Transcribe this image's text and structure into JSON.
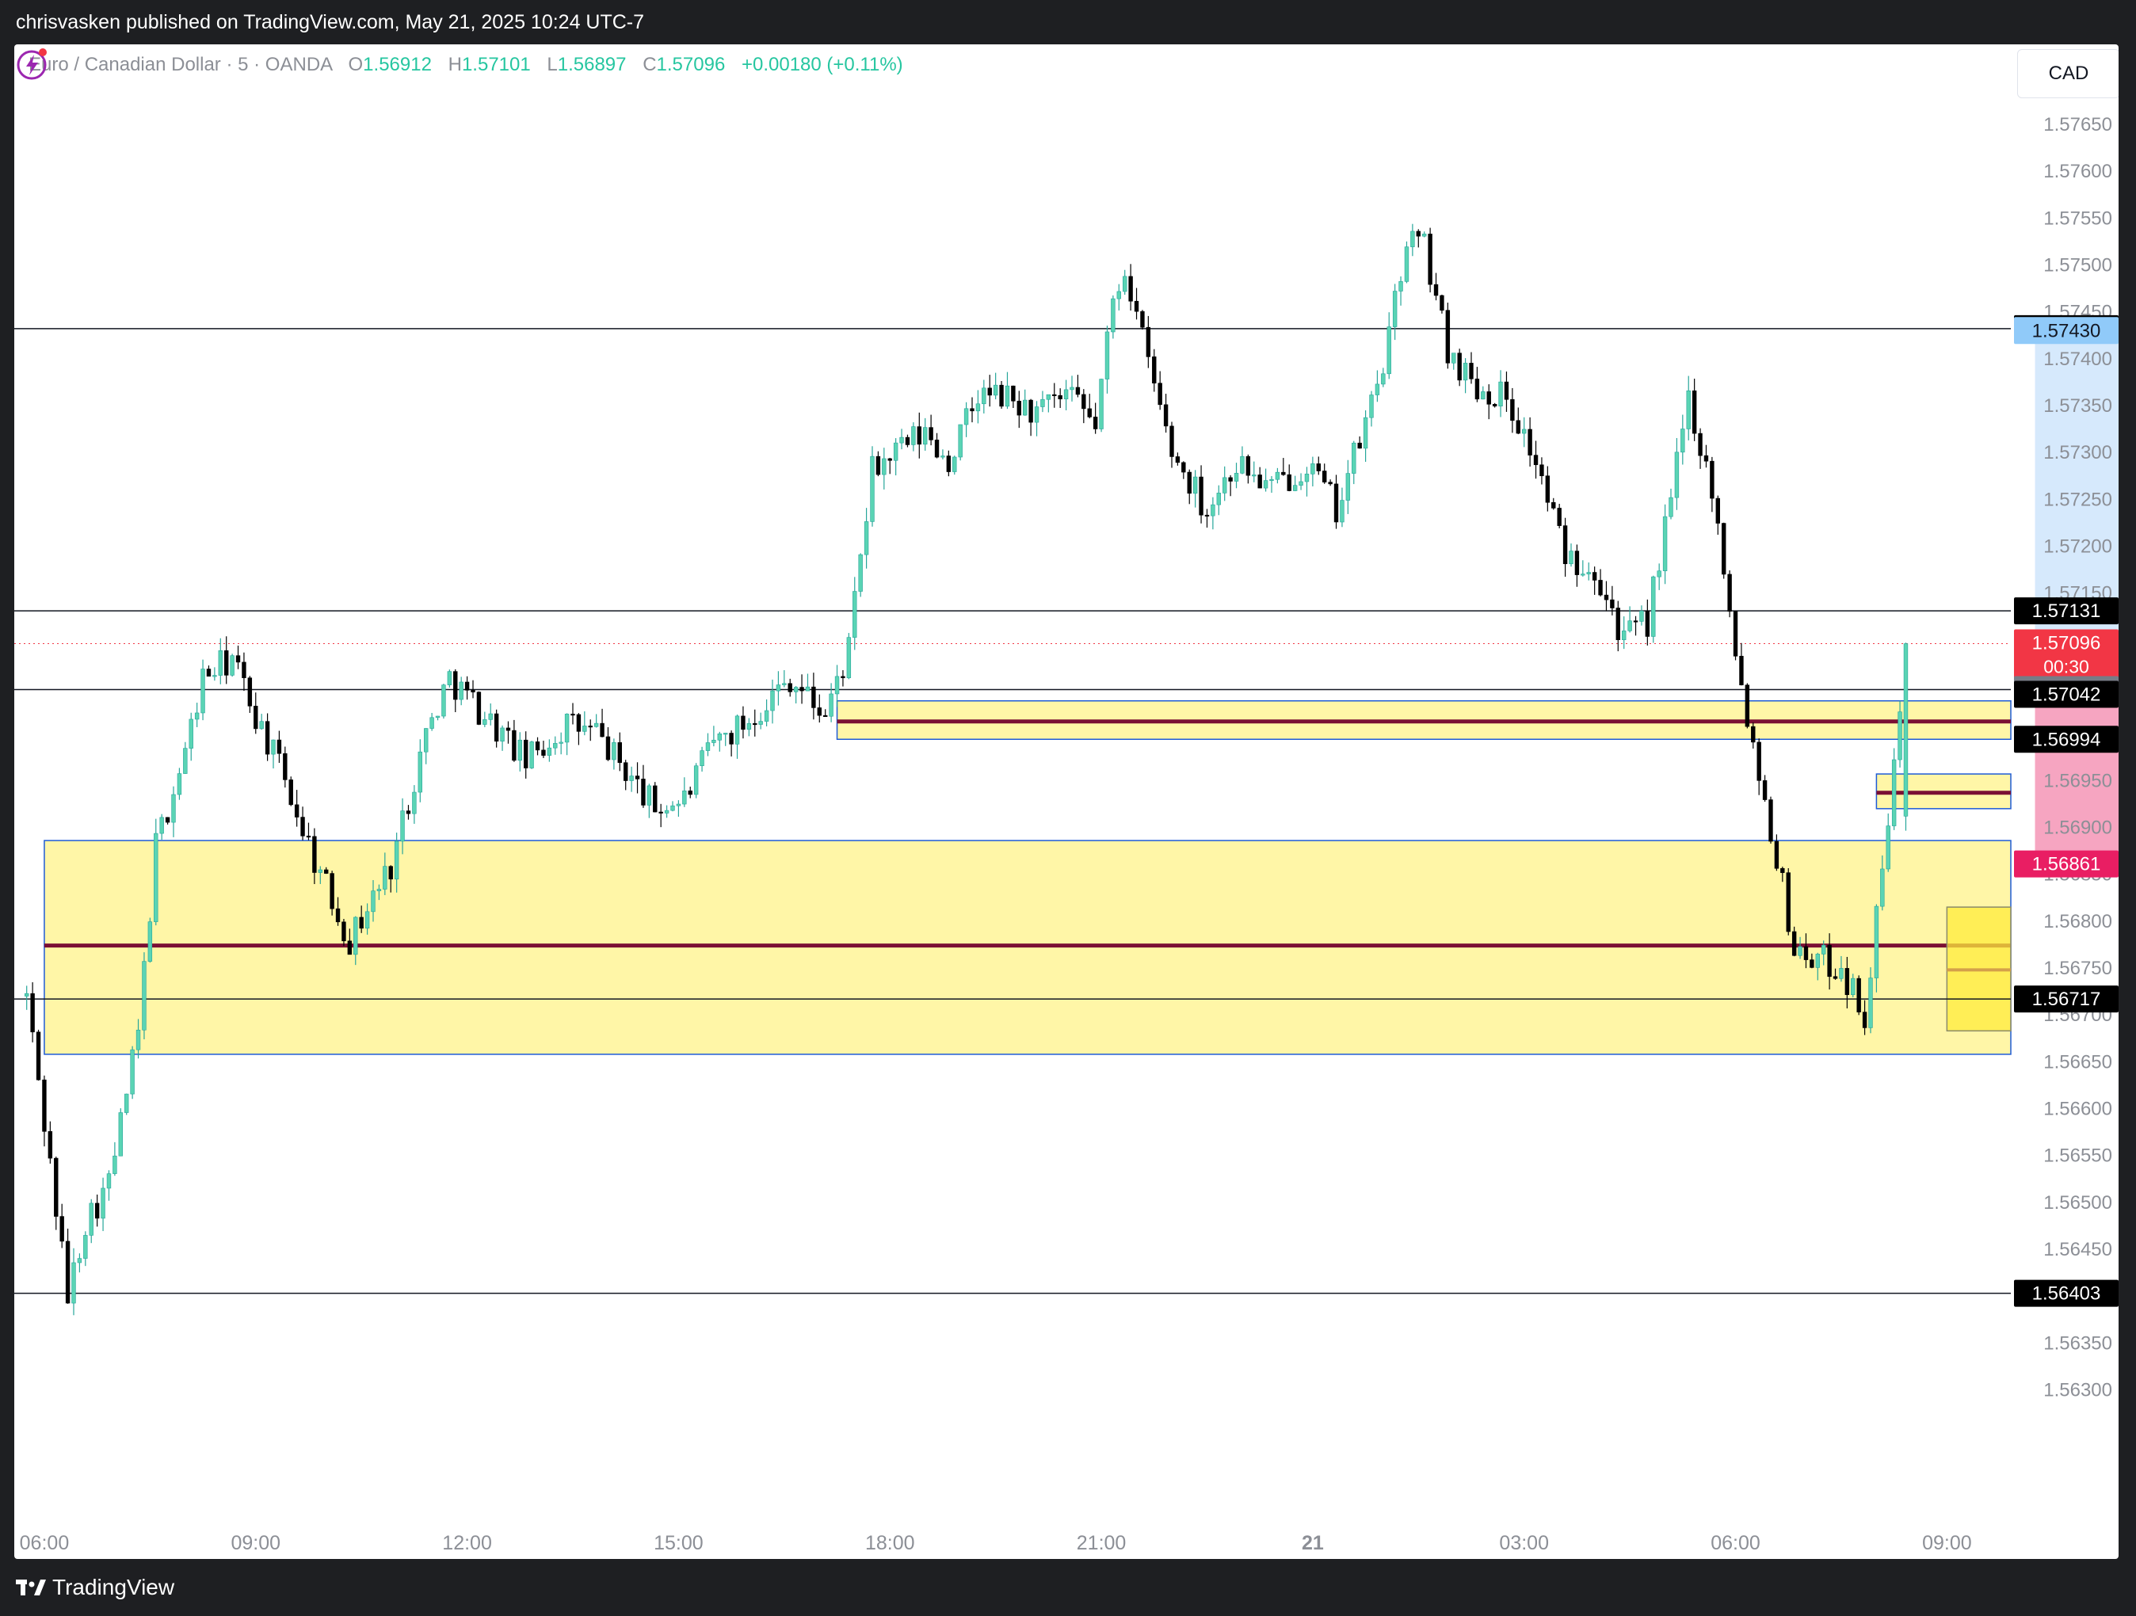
{
  "header": {
    "published_by": "chrisvasken published on TradingView.com, May 21, 2025 10:24 UTC-7"
  },
  "legend": {
    "symbol": "Euro / Canadian Dollar · 5 · OANDA",
    "o_label": "O",
    "o": "1.56912",
    "h_label": "H",
    "h": "1.57101",
    "l_label": "L",
    "l": "1.56897",
    "c_label": "C",
    "c": "1.57096",
    "change": "+0.00180 (+0.11%)"
  },
  "currency_button": "CAD",
  "footer": {
    "brand": "TradingView"
  },
  "colors": {
    "up": "#26a69a",
    "up_fill": "#5ad4b4",
    "down": "#000000",
    "zone_fill": "#fff59d",
    "zone_border": "#1e5bd6",
    "mid_line": "#7b1034",
    "target_zone": "#cfe5fb",
    "stop_zone": "#f48fb1",
    "current_price_bg": "#f23645",
    "target_label_bg": "#90caf9"
  },
  "chart_data": {
    "type": "candlestick",
    "x_ticks": [
      "06:00",
      "09:00",
      "12:00",
      "15:00",
      "18:00",
      "21:00",
      "21",
      "03:00",
      "06:00",
      "09:00",
      "12:00"
    ],
    "y_ticks": [
      "1.57700",
      "1.57650",
      "1.57600",
      "1.57550",
      "1.57500",
      "1.57450",
      "1.57400",
      "1.57350",
      "1.57300",
      "1.57250",
      "1.57200",
      "1.57150",
      "1.57100",
      "1.57050",
      "1.57000",
      "1.56950",
      "1.56900",
      "1.56850",
      "1.56800",
      "1.56750",
      "1.56700",
      "1.56650",
      "1.56600",
      "1.56550",
      "1.56500",
      "1.56450",
      "1.56400",
      "1.56350",
      "1.56300"
    ],
    "y_range": [
      1.56265,
      1.57715
    ],
    "bars_per_hour": 12,
    "session_start": "05:45",
    "horizontal_levels": [
      1.57432,
      1.57131,
      1.57047,
      1.56717,
      1.56403
    ],
    "zones": [
      {
        "name": "demand-zone-large",
        "from": "06:00",
        "to": "right-edge",
        "low": 1.56658,
        "high": 1.56886,
        "mid": 1.56774
      },
      {
        "name": "zone-middle",
        "from": "17:15",
        "to": "right-edge",
        "low": 1.56994,
        "high": 1.57035,
        "mid": 1.57013
      },
      {
        "name": "zone-small-right",
        "from": "day2 08:00",
        "to": "right-edge",
        "low": 1.5692,
        "high": 1.56957,
        "mid": 1.56937
      },
      {
        "name": "zone-bright",
        "from": "day2 09:00",
        "to": "right-edge",
        "low": 1.56683,
        "high": 1.56815,
        "mid": 1.56748
      }
    ],
    "position": {
      "entry": 1.57047,
      "target": 1.5743,
      "stop": 1.56861
    },
    "price_labels": [
      {
        "value": "1.57432",
        "style": "black"
      },
      {
        "value": "1.57430",
        "style": "target"
      },
      {
        "value": "1.57131",
        "style": "black"
      },
      {
        "value": "1.57096",
        "sub": "00:30",
        "style": "current"
      },
      {
        "value": "1.57047",
        "style": "gray"
      },
      {
        "value": "1.57042",
        "style": "black"
      },
      {
        "value": "1.56994",
        "style": "black"
      },
      {
        "value": "1.56861",
        "style": "stop"
      },
      {
        "value": "1.56717",
        "style": "black"
      },
      {
        "value": "1.56403",
        "style": "black"
      }
    ],
    "current_price": 1.57096,
    "anchors": [
      [
        0,
        1.5672
      ],
      [
        4,
        1.5654
      ],
      [
        7,
        1.564
      ],
      [
        10,
        1.5648
      ],
      [
        14,
        1.5652
      ],
      [
        19,
        1.5668
      ],
      [
        22,
        1.5688
      ],
      [
        27,
        1.5698
      ],
      [
        30,
        1.5706
      ],
      [
        35,
        1.5708
      ],
      [
        39,
        1.5702
      ],
      [
        44,
        1.5695
      ],
      [
        50,
        1.5685
      ],
      [
        55,
        1.5678
      ],
      [
        62,
        1.5686
      ],
      [
        68,
        1.57
      ],
      [
        72,
        1.5706
      ],
      [
        78,
        1.5702
      ],
      [
        85,
        1.5697
      ],
      [
        92,
        1.5701
      ],
      [
        97,
        1.57
      ],
      [
        102,
        1.5696
      ],
      [
        107,
        1.5692
      ],
      [
        112,
        1.5693
      ],
      [
        117,
        1.5699
      ],
      [
        122,
        1.5701
      ],
      [
        130,
        1.5706
      ],
      [
        136,
        1.5702
      ],
      [
        140,
        1.5709
      ],
      [
        144,
        1.5728
      ],
      [
        148,
        1.573
      ],
      [
        153,
        1.5732
      ],
      [
        157,
        1.5729
      ],
      [
        162,
        1.5736
      ],
      [
        166,
        1.5736
      ],
      [
        172,
        1.5734
      ],
      [
        177,
        1.5736
      ],
      [
        182,
        1.5733
      ],
      [
        185,
        1.5746
      ],
      [
        187,
        1.575
      ],
      [
        190,
        1.5742
      ],
      [
        195,
        1.573
      ],
      [
        201,
        1.5724
      ],
      [
        206,
        1.5729
      ],
      [
        212,
        1.5726
      ],
      [
        218,
        1.5729
      ],
      [
        223,
        1.5724
      ],
      [
        228,
        1.5733
      ],
      [
        232,
        1.5742
      ],
      [
        235,
        1.5753
      ],
      [
        238,
        1.5752
      ],
      [
        242,
        1.5741
      ],
      [
        247,
        1.5737
      ],
      [
        252,
        1.5736
      ],
      [
        257,
        1.5729
      ],
      [
        262,
        1.5719
      ],
      [
        267,
        1.5718
      ],
      [
        272,
        1.571
      ],
      [
        276,
        1.5712
      ],
      [
        280,
        1.5725
      ],
      [
        283,
        1.5736
      ],
      [
        287,
        1.5726
      ],
      [
        290,
        1.5714
      ],
      [
        292,
        1.5705
      ],
      [
        295,
        1.5696
      ],
      [
        298,
        1.5687
      ],
      [
        301,
        1.5677
      ],
      [
        305,
        1.5676
      ],
      [
        309,
        1.5675
      ],
      [
        313,
        1.567
      ],
      [
        315,
        1.568
      ],
      [
        318,
        1.5696
      ],
      [
        320,
        1.57096
      ]
    ]
  }
}
